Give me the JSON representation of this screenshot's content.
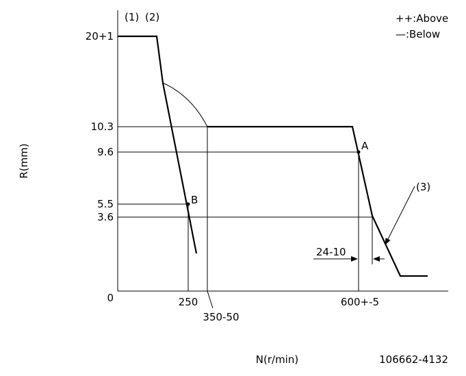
{
  "labels": {
    "note1": "(1)",
    "note2": "(2)",
    "legend_above": "++:Above",
    "legend_below": "—:Below",
    "y_axis_title": "R(mm)",
    "x_axis_title": "N(r/min)",
    "part_number": "106662-4132",
    "point_a": "A",
    "point_b": "B",
    "note3": "(3)",
    "gap": "24-10"
  },
  "y_ticks": [
    "20+1",
    "10.3",
    "9.6",
    "5.5",
    "3.6",
    "0"
  ],
  "x_ticks": [
    "250",
    "350-50",
    "600+-5"
  ]
}
